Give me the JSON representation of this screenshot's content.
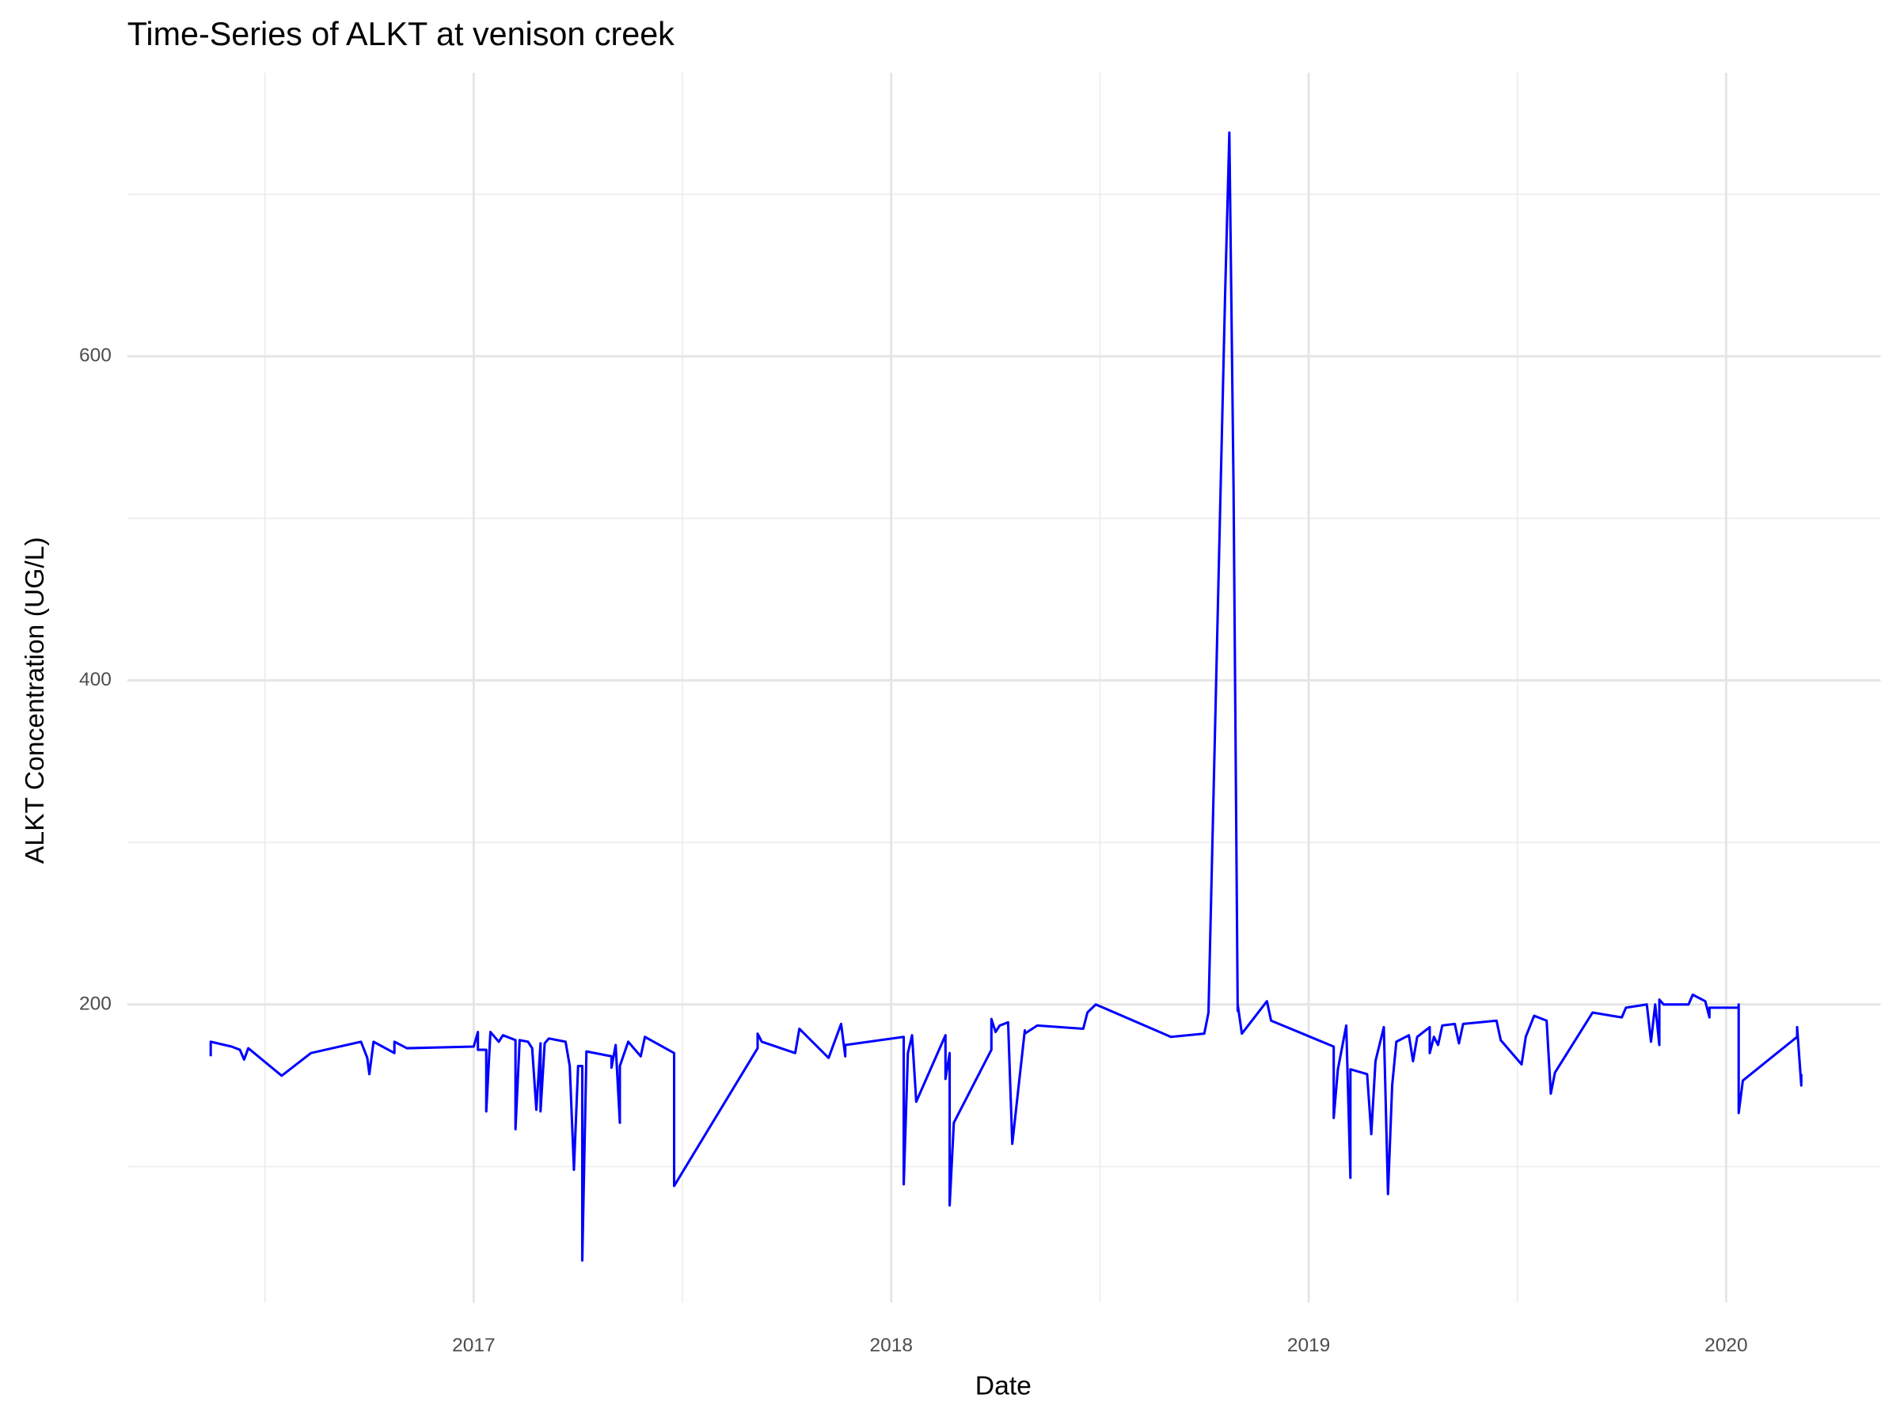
{
  "chart_data": {
    "type": "line",
    "title": "Time-Series of ALKT at venison creek",
    "x_label": "Date",
    "y_label": "ALKT Concentration (UG/L)",
    "x": [
      2016.37,
      2016.37,
      2016.42,
      2016.44,
      2016.45,
      2016.46,
      2016.54,
      2016.61,
      2016.73,
      2016.745,
      2016.75,
      2016.76,
      2016.81,
      2016.81,
      2016.84,
      2017.0,
      2017.01,
      2017.01,
      2017.03,
      2017.03,
      2017.04,
      2017.06,
      2017.07,
      2017.1,
      2017.1,
      2017.11,
      2017.13,
      2017.14,
      2017.15,
      2017.16,
      2017.16,
      2017.17,
      2017.18,
      2017.22,
      2017.23,
      2017.24,
      2017.25,
      2017.26,
      2017.26,
      2017.27,
      2017.33,
      2017.33,
      2017.34,
      2017.35,
      2017.35,
      2017.37,
      2017.4,
      2017.41,
      2017.48,
      2017.48,
      2017.68,
      2017.68,
      2017.69,
      2017.77,
      2017.78,
      2017.85,
      2017.88,
      2017.89,
      2017.89,
      2018.03,
      2018.03,
      2018.04,
      2018.05,
      2018.06,
      2018.13,
      2018.13,
      2018.14,
      2018.14,
      2018.15,
      2018.24,
      2018.24,
      2018.25,
      2018.26,
      2018.28,
      2018.29,
      2018.32,
      2018.32,
      2018.35,
      2018.46,
      2018.47,
      2018.49,
      2018.67,
      2018.75,
      2018.76,
      2018.8,
      2018.81,
      2018.82,
      2018.83,
      2018.83,
      2018.84,
      2018.9,
      2018.91,
      2019.06,
      2019.06,
      2019.07,
      2019.09,
      2019.1,
      2019.1,
      2019.14,
      2019.15,
      2019.16,
      2019.18,
      2019.19,
      2019.2,
      2019.21,
      2019.24,
      2019.25,
      2019.26,
      2019.29,
      2019.29,
      2019.3,
      2019.31,
      2019.32,
      2019.35,
      2019.36,
      2019.37,
      2019.45,
      2019.46,
      2019.51,
      2019.52,
      2019.54,
      2019.57,
      2019.58,
      2019.59,
      2019.68,
      2019.75,
      2019.76,
      2019.81,
      2019.82,
      2019.83,
      2019.84,
      2019.84,
      2019.85,
      2019.91,
      2019.92,
      2019.95,
      2019.96,
      2019.96,
      2020.03,
      2020.03,
      2020.03,
      2020.04,
      2020.17,
      2020.17,
      2020.18,
      2020.18
    ],
    "series": [
      {
        "name": "ALKT",
        "color": "#0000ff",
        "values": [
          168,
          177,
          174,
          172,
          166,
          173,
          156,
          170,
          177,
          167,
          157,
          177,
          170,
          177,
          173,
          174,
          183,
          172,
          172,
          134,
          183,
          177,
          181,
          178,
          123,
          178,
          177,
          173,
          135,
          176,
          134,
          176,
          179,
          177,
          162,
          98,
          162,
          162,
          42,
          171,
          168,
          161,
          175,
          127,
          162,
          177,
          168,
          180,
          170,
          88,
          173,
          182,
          177,
          170,
          185,
          167,
          188,
          168,
          175,
          180,
          89,
          170,
          181,
          140,
          181,
          154,
          170,
          76,
          127,
          172,
          191,
          183,
          187,
          189,
          114,
          184,
          182,
          187,
          185,
          195,
          200,
          180,
          182,
          195,
          640,
          738,
          520,
          196,
          200,
          182,
          202,
          190,
          174,
          130,
          160,
          187,
          93,
          160,
          157,
          120,
          165,
          186,
          83,
          150,
          177,
          181,
          165,
          180,
          186,
          170,
          180,
          175,
          187,
          188,
          176,
          188,
          190,
          178,
          163,
          180,
          193,
          190,
          145,
          158,
          195,
          192,
          198,
          200,
          177,
          200,
          175,
          203,
          200,
          200,
          206,
          202,
          192,
          198,
          198,
          200,
          133,
          153,
          180,
          186,
          150,
          157
        ]
      }
    ],
    "xlim": [
      2016.17,
      2020.37
    ],
    "xticks": [
      2017,
      2018,
      2019,
      2020
    ],
    "x_minor_ticks": [
      2016.5,
      2017.5,
      2018.5,
      2019.5
    ],
    "ylim": [
      16,
      775
    ],
    "yticks": [
      200,
      400,
      600
    ],
    "y_minor_ticks": [
      100,
      300,
      500,
      700
    ],
    "grid": true
  }
}
